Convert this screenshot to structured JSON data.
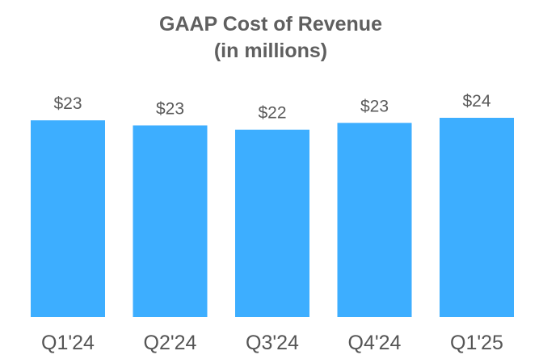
{
  "chart_data": {
    "type": "bar",
    "title": "GAAP Cost of Revenue",
    "subtitle": "(in millions)",
    "categories": [
      "Q1'24",
      "Q2'24",
      "Q3'24",
      "Q4'24",
      "Q1'25"
    ],
    "values": [
      23.2,
      22.6,
      22.1,
      22.9,
      23.5
    ],
    "data_labels": [
      "$23",
      "$23",
      "$22",
      "$23",
      "$24"
    ],
    "xlabel": "",
    "ylabel": "",
    "ylim": [
      0,
      23.5
    ],
    "grid": false,
    "legend": "none",
    "bar_color": "#3daeff"
  },
  "colors": {
    "title": "#5f5f5f",
    "labels": "#555555",
    "background": "#ffffff"
  }
}
